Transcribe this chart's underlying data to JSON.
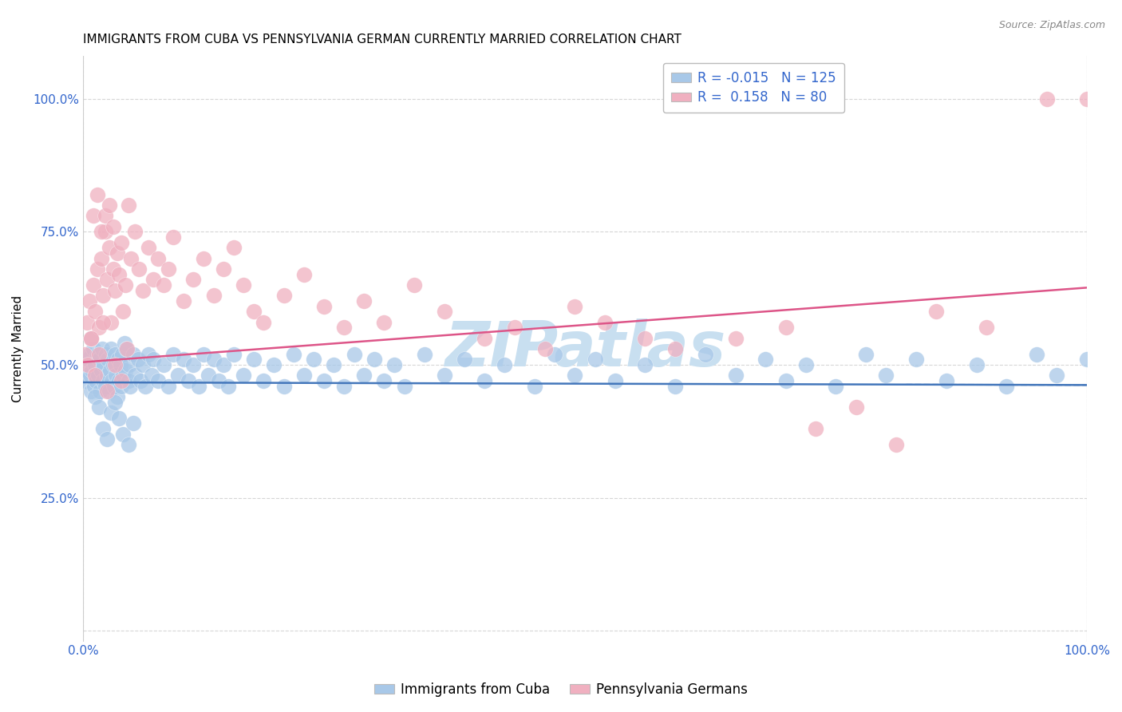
{
  "title": "IMMIGRANTS FROM CUBA VS PENNSYLVANIA GERMAN CURRENTLY MARRIED CORRELATION CHART",
  "source": "Source: ZipAtlas.com",
  "ylabel": "Currently Married",
  "xlim": [
    0.0,
    1.0
  ],
  "ylim": [
    -0.02,
    1.08
  ],
  "ytick_vals": [
    0.0,
    0.25,
    0.5,
    0.75,
    1.0
  ],
  "ytick_labels": [
    "",
    "25.0%",
    "50.0%",
    "75.0%",
    "100.0%"
  ],
  "xtick_vals": [
    0.0,
    1.0
  ],
  "xtick_labels": [
    "0.0%",
    "100.0%"
  ],
  "series": [
    {
      "name": "Immigrants from Cuba",
      "color": "#a8c8e8",
      "R": -0.015,
      "N": 125,
      "trend_color": "#4477bb",
      "trend_start": 0.467,
      "trend_end": 0.462
    },
    {
      "name": "Pennsylvania Germans",
      "color": "#f0b0c0",
      "R": 0.158,
      "N": 80,
      "trend_color": "#dd5588",
      "trend_start": 0.505,
      "trend_end": 0.645
    }
  ],
  "legend_border_color": "#bbbbbb",
  "grid_color": "#cccccc",
  "watermark": "ZIPatlas",
  "watermark_color": "#c8dff0",
  "title_fontsize": 11,
  "axis_label_color": "#3366cc",
  "background_color": "#ffffff",
  "cuba_x": [
    0.002,
    0.003,
    0.004,
    0.005,
    0.006,
    0.007,
    0.008,
    0.009,
    0.01,
    0.011,
    0.012,
    0.013,
    0.014,
    0.015,
    0.016,
    0.017,
    0.018,
    0.019,
    0.02,
    0.021,
    0.022,
    0.023,
    0.024,
    0.025,
    0.026,
    0.027,
    0.028,
    0.029,
    0.03,
    0.031,
    0.032,
    0.033,
    0.034,
    0.035,
    0.036,
    0.037,
    0.038,
    0.039,
    0.04,
    0.041,
    0.042,
    0.043,
    0.045,
    0.046,
    0.047,
    0.05,
    0.052,
    0.055,
    0.057,
    0.06,
    0.062,
    0.065,
    0.068,
    0.07,
    0.075,
    0.08,
    0.085,
    0.09,
    0.095,
    0.1,
    0.105,
    0.11,
    0.115,
    0.12,
    0.125,
    0.13,
    0.135,
    0.14,
    0.145,
    0.15,
    0.16,
    0.17,
    0.18,
    0.19,
    0.2,
    0.21,
    0.22,
    0.23,
    0.24,
    0.25,
    0.26,
    0.27,
    0.28,
    0.29,
    0.3,
    0.31,
    0.32,
    0.34,
    0.36,
    0.38,
    0.4,
    0.42,
    0.45,
    0.47,
    0.49,
    0.51,
    0.53,
    0.56,
    0.59,
    0.62,
    0.65,
    0.68,
    0.7,
    0.72,
    0.75,
    0.78,
    0.8,
    0.83,
    0.86,
    0.89,
    0.92,
    0.95,
    0.97,
    1.0,
    0.008,
    0.012,
    0.016,
    0.02,
    0.024,
    0.028,
    0.032,
    0.036,
    0.04,
    0.045,
    0.05
  ],
  "cuba_y": [
    0.47,
    0.5,
    0.48,
    0.51,
    0.52,
    0.48,
    0.45,
    0.49,
    0.53,
    0.46,
    0.5,
    0.47,
    0.52,
    0.48,
    0.51,
    0.45,
    0.49,
    0.53,
    0.47,
    0.5,
    0.46,
    0.52,
    0.48,
    0.51,
    0.45,
    0.49,
    0.53,
    0.47,
    0.5,
    0.46,
    0.52,
    0.48,
    0.44,
    0.51,
    0.47,
    0.5,
    0.46,
    0.52,
    0.48,
    0.54,
    0.49,
    0.53,
    0.47,
    0.5,
    0.46,
    0.52,
    0.48,
    0.51,
    0.47,
    0.5,
    0.46,
    0.52,
    0.48,
    0.51,
    0.47,
    0.5,
    0.46,
    0.52,
    0.48,
    0.51,
    0.47,
    0.5,
    0.46,
    0.52,
    0.48,
    0.51,
    0.47,
    0.5,
    0.46,
    0.52,
    0.48,
    0.51,
    0.47,
    0.5,
    0.46,
    0.52,
    0.48,
    0.51,
    0.47,
    0.5,
    0.46,
    0.52,
    0.48,
    0.51,
    0.47,
    0.5,
    0.46,
    0.52,
    0.48,
    0.51,
    0.47,
    0.5,
    0.46,
    0.52,
    0.48,
    0.51,
    0.47,
    0.5,
    0.46,
    0.52,
    0.48,
    0.51,
    0.47,
    0.5,
    0.46,
    0.52,
    0.48,
    0.51,
    0.47,
    0.5,
    0.46,
    0.52,
    0.48,
    0.51,
    0.55,
    0.44,
    0.42,
    0.38,
    0.36,
    0.41,
    0.43,
    0.4,
    0.37,
    0.35,
    0.39
  ],
  "penn_x": [
    0.002,
    0.004,
    0.006,
    0.008,
    0.01,
    0.012,
    0.014,
    0.016,
    0.018,
    0.02,
    0.022,
    0.024,
    0.026,
    0.028,
    0.03,
    0.032,
    0.034,
    0.036,
    0.038,
    0.04,
    0.042,
    0.045,
    0.048,
    0.052,
    0.056,
    0.06,
    0.065,
    0.07,
    0.075,
    0.08,
    0.085,
    0.09,
    0.1,
    0.11,
    0.12,
    0.13,
    0.14,
    0.15,
    0.16,
    0.17,
    0.18,
    0.2,
    0.22,
    0.24,
    0.26,
    0.28,
    0.3,
    0.33,
    0.36,
    0.4,
    0.43,
    0.46,
    0.49,
    0.52,
    0.56,
    0.59,
    0.65,
    0.7,
    0.73,
    0.77,
    0.81,
    0.85,
    0.9,
    0.01,
    0.014,
    0.018,
    0.022,
    0.026,
    0.03,
    0.005,
    0.008,
    0.012,
    0.016,
    0.02,
    0.024,
    0.032,
    0.038,
    0.044,
    0.96,
    1.0
  ],
  "penn_y": [
    0.52,
    0.58,
    0.62,
    0.55,
    0.65,
    0.6,
    0.68,
    0.57,
    0.7,
    0.63,
    0.75,
    0.66,
    0.72,
    0.58,
    0.68,
    0.64,
    0.71,
    0.67,
    0.73,
    0.6,
    0.65,
    0.8,
    0.7,
    0.75,
    0.68,
    0.64,
    0.72,
    0.66,
    0.7,
    0.65,
    0.68,
    0.74,
    0.62,
    0.66,
    0.7,
    0.63,
    0.68,
    0.72,
    0.65,
    0.6,
    0.58,
    0.63,
    0.67,
    0.61,
    0.57,
    0.62,
    0.58,
    0.65,
    0.6,
    0.55,
    0.57,
    0.53,
    0.61,
    0.58,
    0.55,
    0.53,
    0.55,
    0.57,
    0.38,
    0.42,
    0.35,
    0.6,
    0.57,
    0.78,
    0.82,
    0.75,
    0.78,
    0.8,
    0.76,
    0.5,
    0.55,
    0.48,
    0.52,
    0.58,
    0.45,
    0.5,
    0.47,
    0.53,
    1.0,
    1.0
  ]
}
